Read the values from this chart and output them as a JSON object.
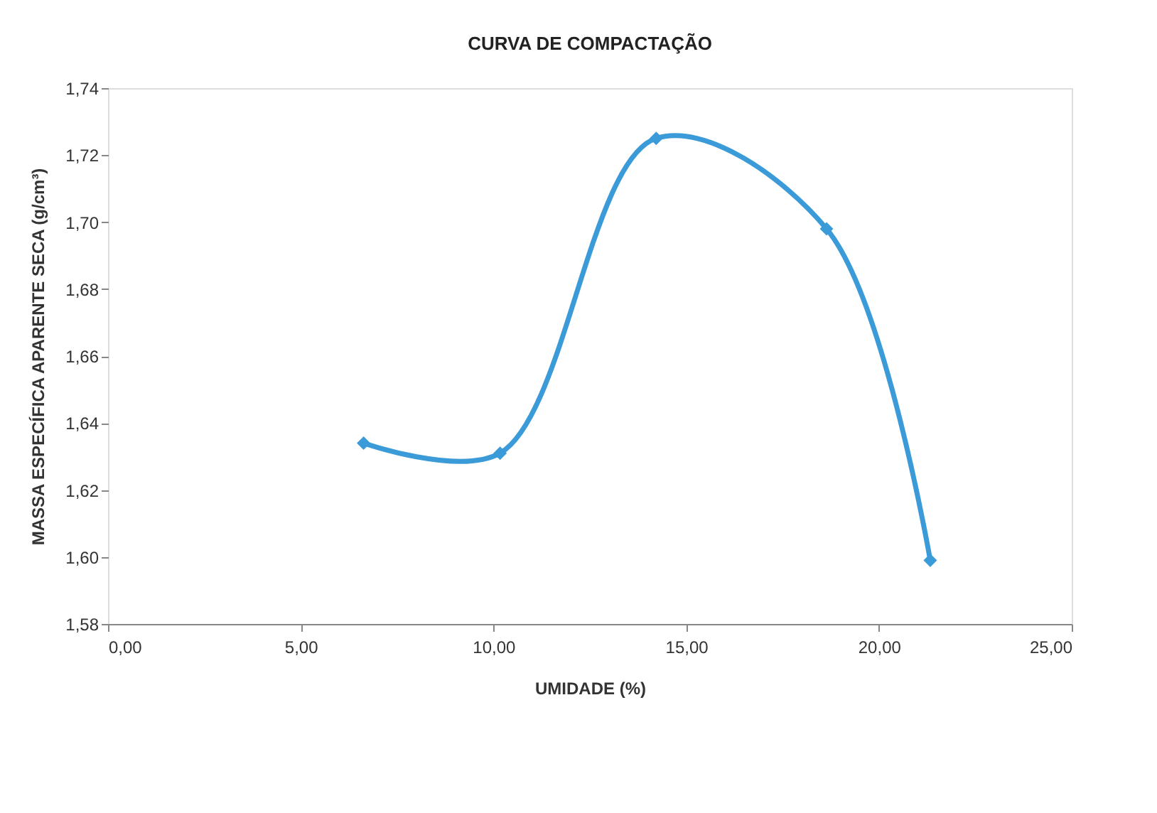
{
  "chart_data": {
    "type": "line",
    "title": "CURVA DE COMPACTAÇÃO",
    "xlabel": "UMIDADE (%)",
    "ylabel": "MASSA ESPECÍFICA APARENTE SECA (g/cm³)",
    "x": [
      6.63,
      10.17,
      14.22,
      18.64,
      21.33
    ],
    "series": [
      {
        "color": "#3b9ad8",
        "values": [
          1.634,
          1.631,
          1.725,
          1.698,
          1.599
        ]
      }
    ],
    "xlim": [
      0,
      25
    ],
    "xticks": [
      {
        "value": 0,
        "label": "0,00"
      },
      {
        "value": 5,
        "label": "5,00"
      },
      {
        "value": 10,
        "label": "10,00"
      },
      {
        "value": 15,
        "label": "15,00"
      },
      {
        "value": 20,
        "label": "20,00"
      },
      {
        "value": 25,
        "label": "25,00"
      }
    ],
    "ylim": [
      1.58,
      1.74
    ],
    "yticks": [
      {
        "value": 1.58,
        "label": "1,58"
      },
      {
        "value": 1.6,
        "label": "1,60"
      },
      {
        "value": 1.62,
        "label": "1,62"
      },
      {
        "value": 1.64,
        "label": "1,64"
      },
      {
        "value": 1.66,
        "label": "1,66"
      },
      {
        "value": 1.68,
        "label": "1,68"
      },
      {
        "value": 1.7,
        "label": "1,70"
      },
      {
        "value": 1.72,
        "label": "1,72"
      },
      {
        "value": 1.74,
        "label": "1,74"
      }
    ],
    "marker": "diamond",
    "line_style": "solid",
    "grid": false,
    "legend": false
  }
}
